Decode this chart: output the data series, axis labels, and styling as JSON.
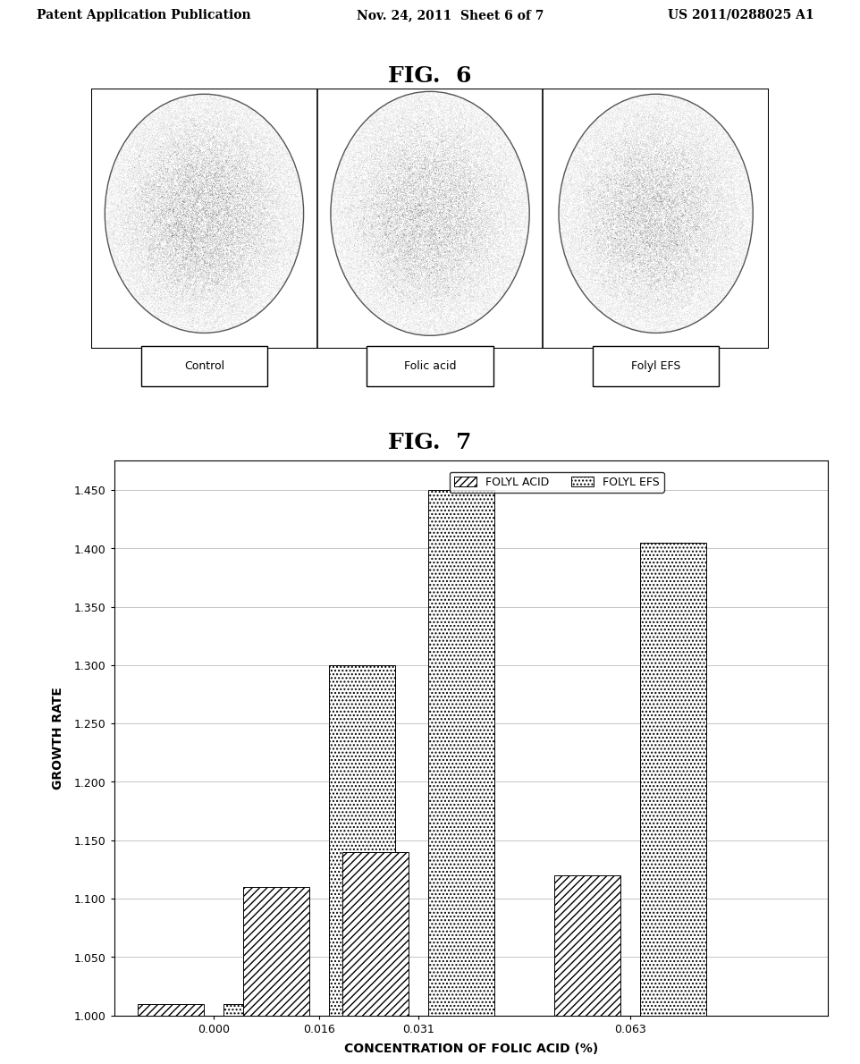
{
  "header_left": "Patent Application Publication",
  "header_mid": "Nov. 24, 2011  Sheet 6 of 7",
  "header_right": "US 2011/0288025 A1",
  "fig6_title": "FIG.  6",
  "fig6_labels": [
    "Control",
    "Folic acid",
    "Folyl EFS"
  ],
  "fig7_title": "FIG.  7",
  "fig7_xlabel": "CONCENTRATION OF FOLIC ACID (%)",
  "fig7_ylabel": "GROWTH RATE",
  "fig7_legend": [
    "FOLYL ACID",
    "FOLYL EFS"
  ],
  "fig7_xticks": [
    "0.000",
    "0.016",
    "0.031",
    "0.063"
  ],
  "fig7_xvals": [
    0.0,
    0.016,
    0.031,
    0.063
  ],
  "fig7_yticks": [
    1.0,
    1.05,
    1.1,
    1.15,
    1.2,
    1.25,
    1.3,
    1.35,
    1.4,
    1.45
  ],
  "fig7_ylim": [
    1.0,
    1.475
  ],
  "folyl_acid": [
    1.01,
    1.11,
    1.14,
    1.12
  ],
  "folyl_efs": [
    1.01,
    1.3,
    1.45,
    1.405
  ],
  "background_color": "#ffffff",
  "text_color": "#000000"
}
